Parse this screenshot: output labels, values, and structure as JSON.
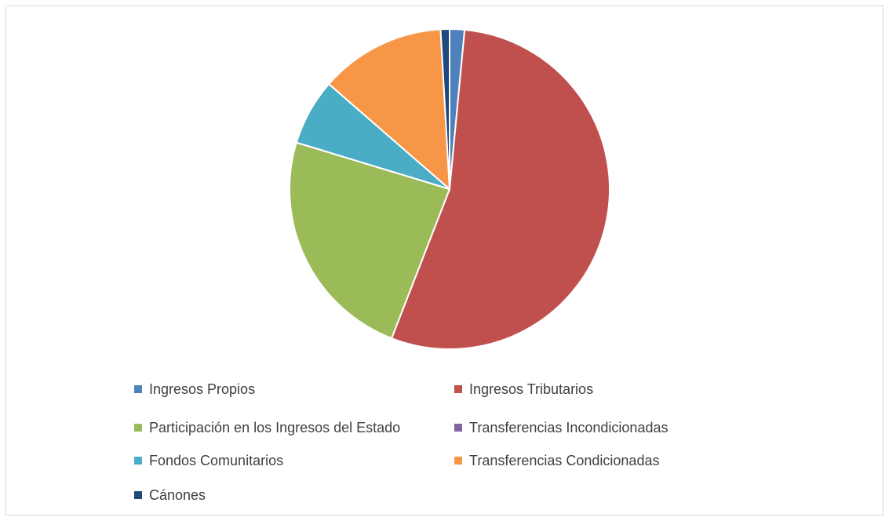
{
  "chart_data": {
    "type": "pie",
    "categories": [
      "Ingresos Propios",
      "Ingresos Tributarios",
      "Participación en los Ingresos del Estado",
      "Transferencias Incondicionadas",
      "Fondos Comunitarios",
      "Transferencias Condicionadas",
      "Cánones"
    ],
    "values": [
      1.5,
      54.4,
      23.8,
      0,
      6.7,
      12.7,
      0.9
    ],
    "colors": [
      "#4f81bd",
      "#c0504d",
      "#9bbb59",
      "#8064a2",
      "#4bacc6",
      "#f79646",
      "#1f497d"
    ],
    "legend": "bottom"
  }
}
